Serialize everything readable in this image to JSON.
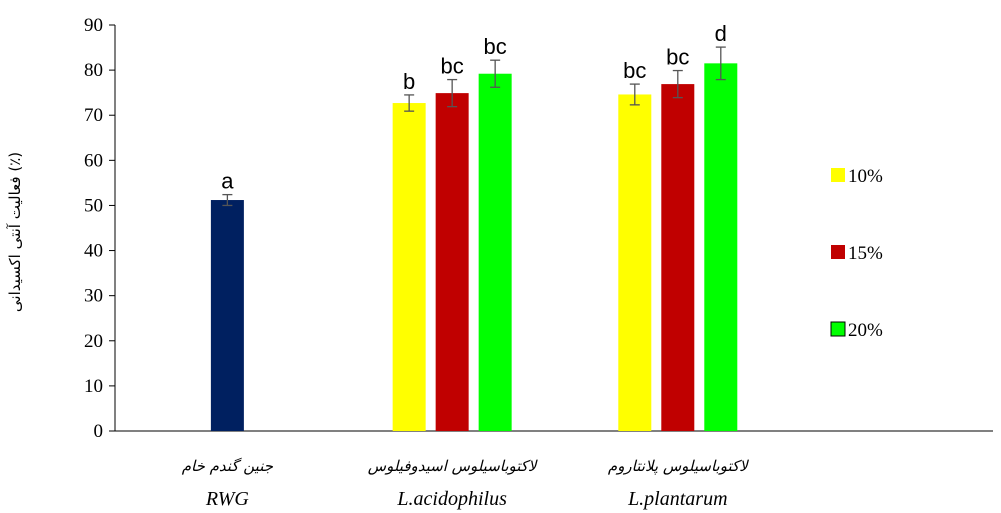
{
  "chart_data": {
    "type": "bar",
    "ylabel": "فعالیت آنتی اکسیدانی (٪)",
    "ylim": [
      0,
      90
    ],
    "yticks": [
      0,
      10,
      20,
      30,
      40,
      50,
      60,
      70,
      80,
      90
    ],
    "grid": false,
    "legend_position": "right",
    "categories": [
      {
        "name_fa": "جنین گندم خام",
        "name_en": "RWG"
      },
      {
        "name_fa": "لاکتوباسیلوس اسیدوفیلوس",
        "name_en": "L.acidophilus"
      },
      {
        "name_fa": "لاکتوباسیلوس پلانتاروم",
        "name_en": "L.plantarum"
      }
    ],
    "series": [
      {
        "name": "10%",
        "color": "#ffff00"
      },
      {
        "name": "15%",
        "color": "#c00000"
      },
      {
        "name": "20%",
        "color": "#00ff00"
      }
    ],
    "bars": [
      {
        "category": 0,
        "series": null,
        "color": "#002060",
        "value": 51.2,
        "error": 1.2,
        "label": "a"
      },
      {
        "category": 1,
        "series": 0,
        "value": 72.7,
        "error": 1.8,
        "label": "b"
      },
      {
        "category": 1,
        "series": 1,
        "value": 74.9,
        "error": 3.0,
        "label": "bc"
      },
      {
        "category": 1,
        "series": 2,
        "value": 79.2,
        "error": 3.0,
        "label": "bc"
      },
      {
        "category": 2,
        "series": 0,
        "value": 74.6,
        "error": 2.3,
        "label": "bc"
      },
      {
        "category": 2,
        "series": 1,
        "value": 76.9,
        "error": 3.0,
        "label": "bc"
      },
      {
        "category": 2,
        "series": 2,
        "value": 81.5,
        "error": 3.6,
        "label": "d"
      }
    ]
  }
}
